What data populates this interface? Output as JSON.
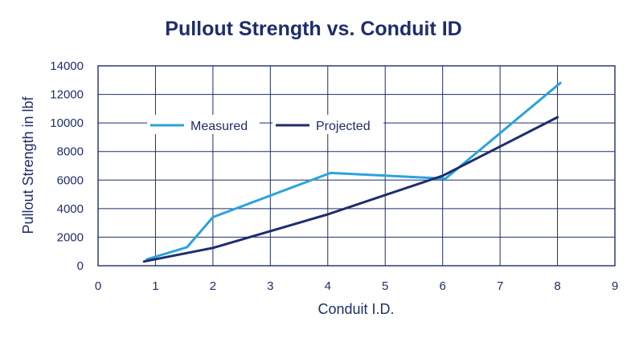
{
  "chart_data": {
    "type": "line",
    "title": "Pullout Strength vs. Conduit ID",
    "xlabel": "Conduit I.D.",
    "ylabel": "Pullout Strength in lbf",
    "xlim": [
      0,
      9
    ],
    "ylim": [
      0,
      14000
    ],
    "x_ticks": [
      0,
      1,
      2,
      3,
      4,
      5,
      6,
      7,
      8,
      9
    ],
    "y_ticks": [
      0,
      2000,
      4000,
      6000,
      8000,
      10000,
      12000,
      14000
    ],
    "grid": true,
    "legend_position": "inside-upper-left",
    "series": [
      {
        "name": "Measured",
        "color": "#29a3dd",
        "points": [
          [
            0.85,
            450
          ],
          [
            1.55,
            1300
          ],
          [
            2.0,
            3400
          ],
          [
            4.05,
            6500
          ],
          [
            6.05,
            6100
          ],
          [
            8.05,
            12800
          ]
        ]
      },
      {
        "name": "Projected",
        "color": "#1f2d6b",
        "points": [
          [
            0.8,
            300
          ],
          [
            2.0,
            1250
          ],
          [
            4.0,
            3600
          ],
          [
            6.0,
            6300
          ],
          [
            8.0,
            10400
          ]
        ]
      }
    ]
  }
}
